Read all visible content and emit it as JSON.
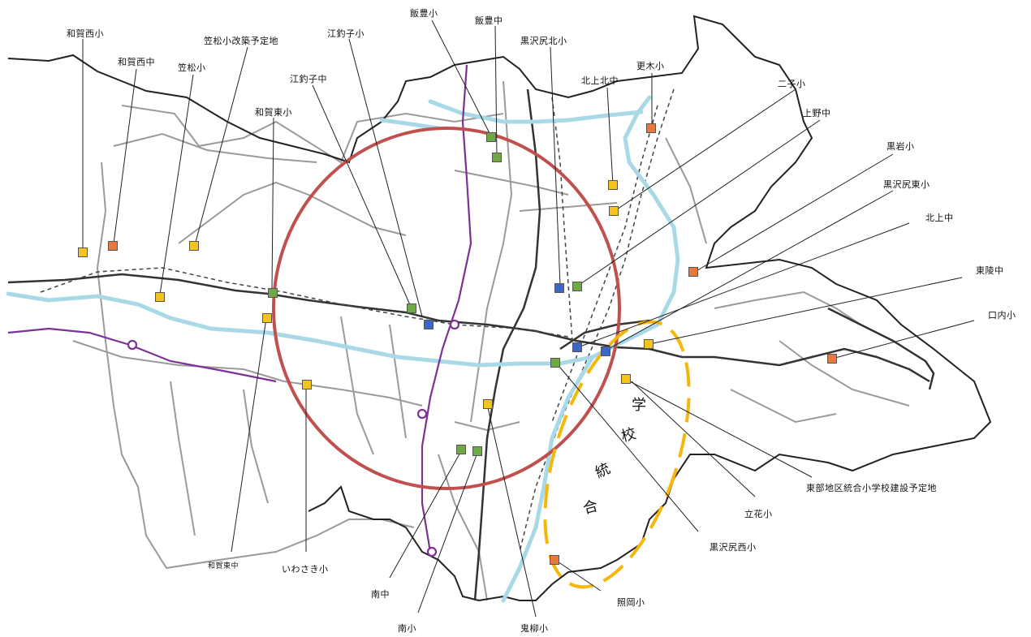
{
  "legend_colors": {
    "elementary": "#f5c31a",
    "junior_high": "#6ea945",
    "planned": "#e8793a",
    "combined": "#3b68c6",
    "circle": "#c0504d",
    "river": "#a8d8e6",
    "expressway": "#7b3294",
    "integration": "#f5b70a"
  },
  "labels": {
    "wagasei_sho": "和賀西小",
    "wagasei_chu": "和賀西中",
    "kasamatsu_kaichiku": "笠松小改築予定地",
    "kasamatsu_sho": "笠松小",
    "etsuriko_sho": "江釣子小",
    "etsuriko_chu": "江釣子中",
    "wagahigashi_sho": "和賀東小",
    "iitoyo_sho": "飯豊小",
    "iitoyo_chu": "飯豊中",
    "kurosawajiri_kita_sho": "黒沢尻北小",
    "kitakami_kita_chu": "北上北中",
    "sarashina_sho": "更木小",
    "futago_sho": "二子小",
    "ueno_chu": "上野中",
    "kuroiwa_sho": "黒岩小",
    "kurosawajiri_higashi_sho": "黒沢尻東小",
    "kitakami_chu": "北上中",
    "toryo_chu": "東陵中",
    "kuchiuchi_sho": "口内小",
    "tobu_togo": "東部地区統合小学校建設予定地",
    "tachibana_sho": "立花小",
    "kurosawajiri_nishi_sho": "黒沢尻西小",
    "teruoka_sho": "照岡小",
    "onikawa_sho": "鬼柳小",
    "minami_sho": "南小",
    "minami_chu": "南中",
    "iwasaki_sho": "いわさき小",
    "wagahigashi_chu": "和賀東中"
  },
  "integration_text": [
    "学",
    "校",
    "統",
    "合"
  ]
}
